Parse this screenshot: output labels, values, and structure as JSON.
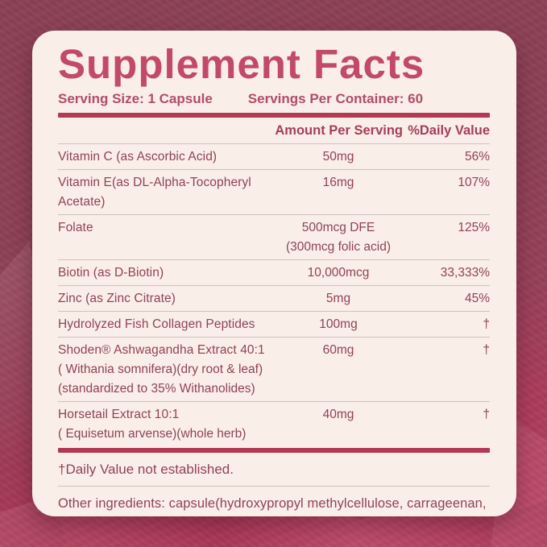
{
  "panel": {
    "title": "Supplement Facts",
    "serving_size": "Serving Size: 1 Capsule",
    "servings_per_container": "Servings Per Container: 60",
    "columns": {
      "amount": "Amount Per Serving",
      "daily_value": "%Daily Value"
    },
    "rows": [
      {
        "name": "Vitamin C (as Ascorbic Acid)",
        "amount": "50mg",
        "dv": "56%"
      },
      {
        "name": "Vitamin E(as DL-Alpha-Tocopheryl Acetate)",
        "amount": "16mg",
        "dv": "107%"
      },
      {
        "name": "Folate",
        "amount": "500mcg DFE",
        "dv": "125%",
        "amount_subline": "(300mcg folic acid)"
      },
      {
        "name": "Biotin (as D-Biotin)",
        "amount": "10,000mcg",
        "dv": "33,333%"
      },
      {
        "name": "Zinc (as Zinc Citrate)",
        "amount": "5mg",
        "dv": "45%"
      },
      {
        "name": "Hydrolyzed Fish Collagen Peptides",
        "amount": "100mg",
        "dv": "†"
      },
      {
        "name": "Shoden® Ashwagandha Extract 40:1",
        "amount": "60mg",
        "dv": "†",
        "subline1": "( Withania somnifera)(dry root & leaf)",
        "subline2": "(standardized to 35% Withanolides)"
      },
      {
        "name": "Horsetail Extract 10:1",
        "amount": "40mg",
        "dv": "†",
        "subline1": "( Equisetum arvense)(whole herb)"
      }
    ],
    "footnote": "†Daily Value not established.",
    "other_ingredients": "Other ingredients: capsule(hydroxypropyl methylcellulose, carrageenan, glycerin, artificial color), magnesium stearate, silicon dioxide, microcrystalline cellulose."
  },
  "colors": {
    "background_top": "#8b4056",
    "background_bottom": "#b73f60",
    "panel_background": "#faeee8",
    "accent_crimson": "#b23853",
    "title_text": "#c24a67",
    "body_text": "#8f4357"
  }
}
